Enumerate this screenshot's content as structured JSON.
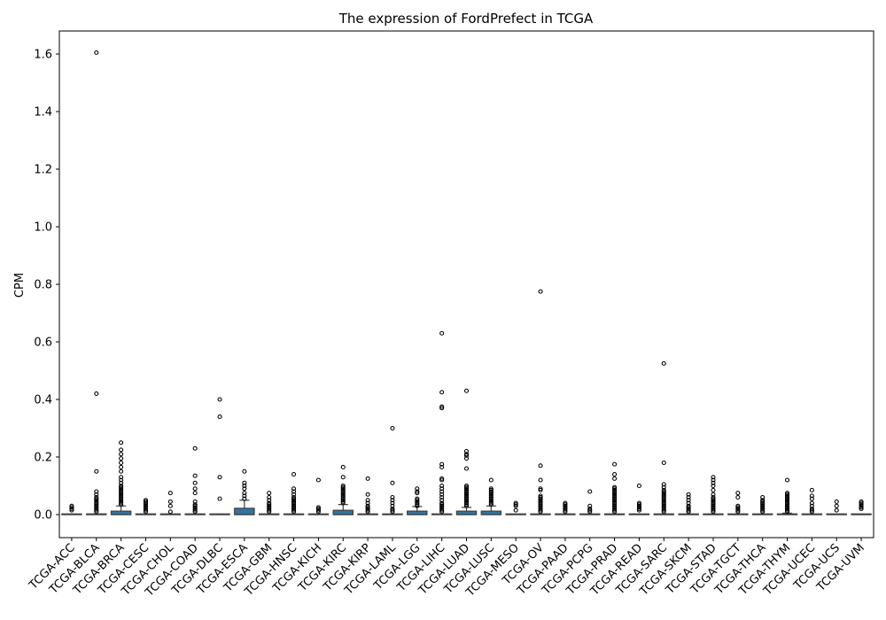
{
  "chart_data": {
    "type": "box",
    "title": "The expression of FordPrefect in TCGA",
    "ylabel": "CPM",
    "xlabel": "",
    "ylim": [
      -0.08,
      1.68
    ],
    "yticks": [
      0.0,
      0.2,
      0.4,
      0.6,
      0.8,
      1.0,
      1.2,
      1.4,
      1.6
    ],
    "ytick_labels": [
      "0.0",
      "0.2",
      "0.4",
      "0.6",
      "0.8",
      "1.0",
      "1.2",
      "1.4",
      "1.6"
    ],
    "grid": false,
    "box_color": "#3274a1",
    "outlier_color": "#000000",
    "categories": [
      "TCGA-ACC",
      "TCGA-BLCA",
      "TCGA-BRCA",
      "TCGA-CESC",
      "TCGA-CHOL",
      "TCGA-COAD",
      "TCGA-DLBC",
      "TCGA-ESCA",
      "TCGA-GBM",
      "TCGA-HNSC",
      "TCGA-KICH",
      "TCGA-KIRC",
      "TCGA-KIRP",
      "TCGA-LAML",
      "TCGA-LGG",
      "TCGA-LIHC",
      "TCGA-LUAD",
      "TCGA-LUSC",
      "TCGA-MESO",
      "TCGA-OV",
      "TCGA-PAAD",
      "TCGA-PCPG",
      "TCGA-PRAD",
      "TCGA-READ",
      "TCGA-SARC",
      "TCGA-SKCM",
      "TCGA-STAD",
      "TCGA-TGCT",
      "TCGA-THCA",
      "TCGA-THYM",
      "TCGA-UCEC",
      "TCGA-UCS",
      "TCGA-UVM"
    ],
    "boxes": [
      {
        "q1": 0,
        "median": 0,
        "q3": 0,
        "whisker_low": 0,
        "whisker_high": 0,
        "outliers": [
          0.015,
          0.02,
          0.025,
          0.03
        ]
      },
      {
        "q1": 0,
        "median": 0,
        "q3": 0,
        "whisker_low": 0,
        "whisker_high": 0,
        "outliers": [
          0.01,
          0.015,
          0.02,
          0.025,
          0.03,
          0.035,
          0.04,
          0.045,
          0.05,
          0.055,
          0.06,
          0.07,
          0.08,
          0.15,
          0.42,
          1.605
        ]
      },
      {
        "q1": 0,
        "median": 0,
        "q3": 0.012,
        "whisker_low": 0,
        "whisker_high": 0.03,
        "outliers": [
          0.035,
          0.04,
          0.045,
          0.05,
          0.055,
          0.06,
          0.065,
          0.07,
          0.075,
          0.08,
          0.085,
          0.09,
          0.095,
          0.1,
          0.11,
          0.12,
          0.13,
          0.15,
          0.165,
          0.18,
          0.195,
          0.21,
          0.225,
          0.25
        ]
      },
      {
        "q1": 0,
        "median": 0,
        "q3": 0,
        "whisker_low": 0,
        "whisker_high": 0,
        "outliers": [
          0.01,
          0.015,
          0.02,
          0.025,
          0.03,
          0.035,
          0.04,
          0.045,
          0.05
        ]
      },
      {
        "q1": 0,
        "median": 0,
        "q3": 0,
        "whisker_low": 0,
        "whisker_high": 0,
        "outliers": [
          0.01,
          0.03,
          0.045,
          0.075
        ]
      },
      {
        "q1": 0,
        "median": 0,
        "q3": 0,
        "whisker_low": 0,
        "whisker_high": 0,
        "outliers": [
          0.01,
          0.015,
          0.02,
          0.025,
          0.03,
          0.035,
          0.045,
          0.075,
          0.09,
          0.11,
          0.135,
          0.23
        ]
      },
      {
        "q1": 0,
        "median": 0,
        "q3": 0,
        "whisker_low": 0,
        "whisker_high": 0,
        "outliers": [
          0.055,
          0.13,
          0.34,
          0.4
        ]
      },
      {
        "q1": 0,
        "median": 0,
        "q3": 0.022,
        "whisker_low": 0,
        "whisker_high": 0.05,
        "outliers": [
          0.055,
          0.065,
          0.075,
          0.09,
          0.1,
          0.11,
          0.15
        ]
      },
      {
        "q1": 0,
        "median": 0,
        "q3": 0,
        "whisker_low": 0,
        "whisker_high": 0,
        "outliers": [
          0.01,
          0.015,
          0.02,
          0.025,
          0.03,
          0.035,
          0.04,
          0.05,
          0.06,
          0.075
        ]
      },
      {
        "q1": 0,
        "median": 0,
        "q3": 0,
        "whisker_low": 0,
        "whisker_high": 0,
        "outliers": [
          0.01,
          0.015,
          0.02,
          0.025,
          0.03,
          0.035,
          0.04,
          0.045,
          0.05,
          0.055,
          0.06,
          0.07,
          0.08,
          0.09,
          0.14
        ]
      },
      {
        "q1": 0,
        "median": 0,
        "q3": 0,
        "whisker_low": 0,
        "whisker_high": 0,
        "outliers": [
          0.01,
          0.015,
          0.02,
          0.025,
          0.12
        ]
      },
      {
        "q1": 0,
        "median": 0,
        "q3": 0.015,
        "whisker_low": 0,
        "whisker_high": 0.035,
        "outliers": [
          0.04,
          0.045,
          0.05,
          0.055,
          0.06,
          0.065,
          0.07,
          0.075,
          0.08,
          0.085,
          0.09,
          0.095,
          0.1,
          0.13,
          0.165
        ]
      },
      {
        "q1": 0,
        "median": 0,
        "q3": 0,
        "whisker_low": 0,
        "whisker_high": 0,
        "outliers": [
          0.01,
          0.015,
          0.02,
          0.025,
          0.03,
          0.04,
          0.05,
          0.07,
          0.125
        ]
      },
      {
        "q1": 0,
        "median": 0,
        "q3": 0,
        "whisker_low": 0,
        "whisker_high": 0,
        "outliers": [
          0.01,
          0.015,
          0.02,
          0.03,
          0.04,
          0.05,
          0.06,
          0.11,
          0.3
        ]
      },
      {
        "q1": 0,
        "median": 0,
        "q3": 0.012,
        "whisker_low": 0,
        "whisker_high": 0.028,
        "outliers": [
          0.03,
          0.035,
          0.04,
          0.045,
          0.05,
          0.055,
          0.075,
          0.08,
          0.09
        ]
      },
      {
        "q1": 0,
        "median": 0,
        "q3": 0,
        "whisker_low": 0,
        "whisker_high": 0,
        "outliers": [
          0.01,
          0.015,
          0.02,
          0.025,
          0.03,
          0.035,
          0.04,
          0.05,
          0.06,
          0.07,
          0.08,
          0.09,
          0.1,
          0.12,
          0.125,
          0.165,
          0.175,
          0.37,
          0.375,
          0.425,
          0.63
        ]
      },
      {
        "q1": 0,
        "median": 0,
        "q3": 0.012,
        "whisker_low": 0,
        "whisker_high": 0.025,
        "outliers": [
          0.03,
          0.035,
          0.04,
          0.045,
          0.05,
          0.055,
          0.06,
          0.065,
          0.07,
          0.075,
          0.08,
          0.085,
          0.09,
          0.095,
          0.1,
          0.16,
          0.195,
          0.205,
          0.21,
          0.22,
          0.43
        ]
      },
      {
        "q1": 0,
        "median": 0,
        "q3": 0.012,
        "whisker_low": 0,
        "whisker_high": 0.03,
        "outliers": [
          0.035,
          0.04,
          0.045,
          0.05,
          0.055,
          0.06,
          0.065,
          0.07,
          0.075,
          0.08,
          0.085,
          0.09,
          0.12
        ]
      },
      {
        "q1": 0,
        "median": 0,
        "q3": 0,
        "whisker_low": 0,
        "whisker_high": 0,
        "outliers": [
          0.015,
          0.03,
          0.035,
          0.04
        ]
      },
      {
        "q1": 0,
        "median": 0,
        "q3": 0,
        "whisker_low": 0,
        "whisker_high": 0,
        "outliers": [
          0.01,
          0.015,
          0.02,
          0.025,
          0.03,
          0.035,
          0.04,
          0.045,
          0.05,
          0.055,
          0.06,
          0.065,
          0.085,
          0.09,
          0.12,
          0.17,
          0.775
        ]
      },
      {
        "q1": 0,
        "median": 0,
        "q3": 0,
        "whisker_low": 0,
        "whisker_high": 0,
        "outliers": [
          0.01,
          0.015,
          0.02,
          0.025,
          0.03,
          0.035,
          0.04
        ]
      },
      {
        "q1": 0,
        "median": 0,
        "q3": 0,
        "whisker_low": 0,
        "whisker_high": 0,
        "outliers": [
          0.01,
          0.015,
          0.02,
          0.03,
          0.08
        ]
      },
      {
        "q1": 0,
        "median": 0,
        "q3": 0,
        "whisker_low": 0,
        "whisker_high": 0,
        "outliers": [
          0.01,
          0.015,
          0.02,
          0.025,
          0.03,
          0.035,
          0.04,
          0.045,
          0.05,
          0.055,
          0.06,
          0.065,
          0.07,
          0.075,
          0.08,
          0.085,
          0.09,
          0.095,
          0.125,
          0.14,
          0.175
        ]
      },
      {
        "q1": 0,
        "median": 0,
        "q3": 0,
        "whisker_low": 0,
        "whisker_high": 0,
        "outliers": [
          0.015,
          0.02,
          0.025,
          0.03,
          0.035,
          0.04,
          0.1
        ]
      },
      {
        "q1": 0,
        "median": 0,
        "q3": 0,
        "whisker_low": 0,
        "whisker_high": 0,
        "outliers": [
          0.01,
          0.015,
          0.02,
          0.025,
          0.03,
          0.035,
          0.04,
          0.045,
          0.05,
          0.055,
          0.06,
          0.065,
          0.07,
          0.075,
          0.08,
          0.085,
          0.095,
          0.105,
          0.18,
          0.525
        ]
      },
      {
        "q1": 0,
        "median": 0,
        "q3": 0,
        "whisker_low": 0,
        "whisker_high": 0,
        "outliers": [
          0.01,
          0.015,
          0.02,
          0.025,
          0.03,
          0.04,
          0.05,
          0.06,
          0.07
        ]
      },
      {
        "q1": 0,
        "median": 0,
        "q3": 0,
        "whisker_low": 0,
        "whisker_high": 0,
        "outliers": [
          0.01,
          0.015,
          0.02,
          0.025,
          0.03,
          0.035,
          0.04,
          0.045,
          0.05,
          0.055,
          0.06,
          0.07,
          0.085,
          0.1,
          0.11,
          0.12,
          0.13
        ]
      },
      {
        "q1": 0,
        "median": 0,
        "q3": 0,
        "whisker_low": 0,
        "whisker_high": 0,
        "outliers": [
          0.01,
          0.015,
          0.02,
          0.025,
          0.03,
          0.06,
          0.075
        ]
      },
      {
        "q1": 0,
        "median": 0,
        "q3": 0,
        "whisker_low": 0,
        "whisker_high": 0,
        "outliers": [
          0.01,
          0.015,
          0.02,
          0.025,
          0.03,
          0.035,
          0.04,
          0.045,
          0.05,
          0.06
        ]
      },
      {
        "q1": 0,
        "median": 0,
        "q3": 0.002,
        "whisker_low": 0,
        "whisker_high": 0.005,
        "outliers": [
          0.01,
          0.015,
          0.02,
          0.025,
          0.03,
          0.035,
          0.04,
          0.045,
          0.05,
          0.055,
          0.06,
          0.065,
          0.07,
          0.075,
          0.12
        ]
      },
      {
        "q1": 0,
        "median": 0,
        "q3": 0,
        "whisker_low": 0,
        "whisker_high": 0,
        "outliers": [
          0.01,
          0.015,
          0.02,
          0.03,
          0.04,
          0.055,
          0.065,
          0.085
        ]
      },
      {
        "q1": 0,
        "median": 0,
        "q3": 0,
        "whisker_low": 0,
        "whisker_high": 0,
        "outliers": [
          0.015,
          0.03,
          0.045
        ]
      },
      {
        "q1": 0,
        "median": 0,
        "q3": 0,
        "whisker_low": 0,
        "whisker_high": 0,
        "outliers": [
          0.02,
          0.025,
          0.03,
          0.035,
          0.04,
          0.045
        ]
      }
    ]
  }
}
